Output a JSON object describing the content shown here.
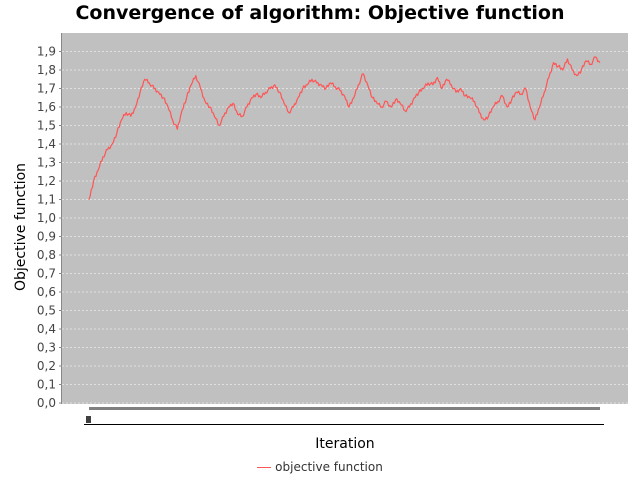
{
  "chart_data": {
    "type": "line",
    "title": "Convergence of algorithm: Objective function",
    "xlabel": "Iteration",
    "ylabel": "Objective function",
    "ylim": [
      0,
      1.95
    ],
    "yticks": [
      "0,0",
      "0,1",
      "0,2",
      "0,3",
      "0,4",
      "0,5",
      "0,6",
      "0,7",
      "0,8",
      "0,9",
      "1,0",
      "1,1",
      "1,2",
      "1,3",
      "1,4",
      "1,5",
      "1,6",
      "1,7",
      "1,8",
      "1,9"
    ],
    "grid": true,
    "legend_position": "bottom",
    "colors": {
      "plot_background": "#c0c0c0",
      "series": "#ff5555",
      "grid": "#ffffff"
    },
    "series": [
      {
        "name": "objective function",
        "values": [
          1.1,
          1.2,
          1.26,
          1.33,
          1.37,
          1.4,
          1.46,
          1.53,
          1.57,
          1.55,
          1.6,
          1.68,
          1.75,
          1.73,
          1.7,
          1.68,
          1.65,
          1.6,
          1.53,
          1.48,
          1.58,
          1.65,
          1.72,
          1.77,
          1.7,
          1.63,
          1.6,
          1.55,
          1.5,
          1.55,
          1.6,
          1.62,
          1.56,
          1.55,
          1.6,
          1.65,
          1.67,
          1.65,
          1.68,
          1.7,
          1.72,
          1.68,
          1.62,
          1.57,
          1.6,
          1.65,
          1.7,
          1.72,
          1.75,
          1.73,
          1.72,
          1.7,
          1.73,
          1.71,
          1.69,
          1.66,
          1.6,
          1.65,
          1.72,
          1.78,
          1.72,
          1.65,
          1.62,
          1.6,
          1.63,
          1.6,
          1.64,
          1.62,
          1.58,
          1.6,
          1.65,
          1.68,
          1.7,
          1.73,
          1.72,
          1.76,
          1.7,
          1.75,
          1.72,
          1.68,
          1.7,
          1.66,
          1.65,
          1.63,
          1.57,
          1.53,
          1.55,
          1.6,
          1.63,
          1.66,
          1.6,
          1.64,
          1.68,
          1.67,
          1.7,
          1.6,
          1.53,
          1.6,
          1.68,
          1.76,
          1.84,
          1.82,
          1.8,
          1.86,
          1.8,
          1.77,
          1.8,
          1.85,
          1.83,
          1.87,
          1.84
        ]
      }
    ]
  }
}
